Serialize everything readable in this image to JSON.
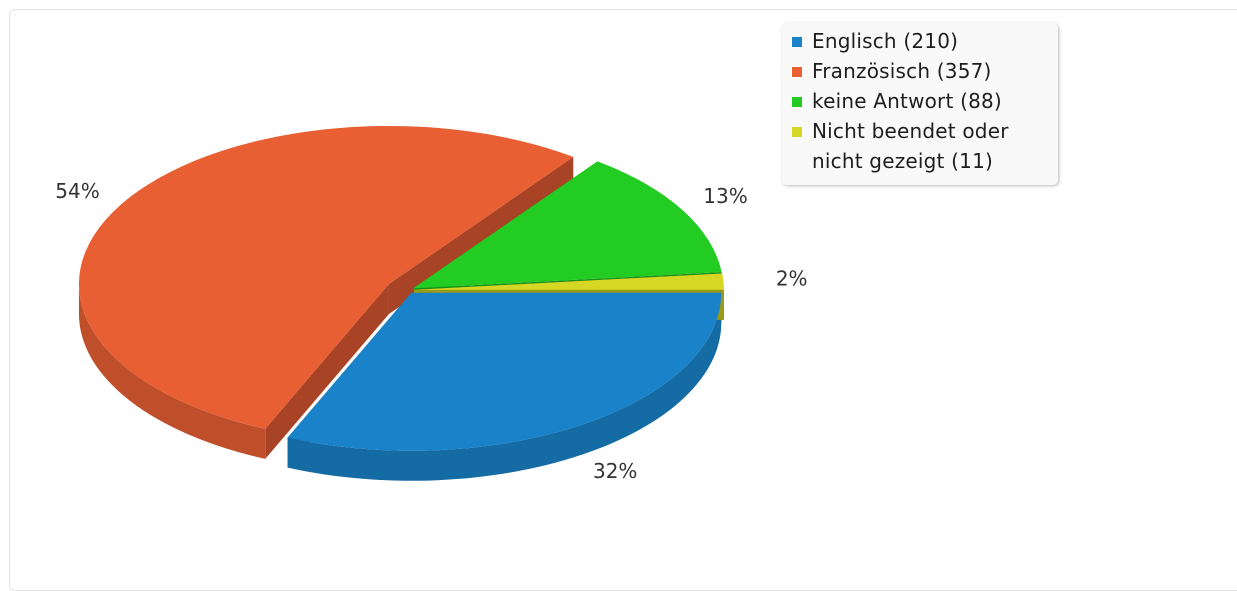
{
  "chart_data": {
    "type": "pie",
    "title": "",
    "slices": [
      {
        "label": "Englisch (210)",
        "value": 210,
        "percent_label": "32%",
        "color": "#1a82c8"
      },
      {
        "label": "Französisch (357)",
        "value": 357,
        "percent_label": "54%",
        "color": "#e95f34"
      },
      {
        "label": "keine Antwort (88)",
        "value": 88,
        "percent_label": "13%",
        "color": "#22cc22"
      },
      {
        "label": "Nicht beendet oder nicht gezeigt (11)",
        "value": 11,
        "percent_label": "2%",
        "color": "#d6d624"
      }
    ],
    "legend_position": "top-right",
    "style": "3d-exploded"
  }
}
